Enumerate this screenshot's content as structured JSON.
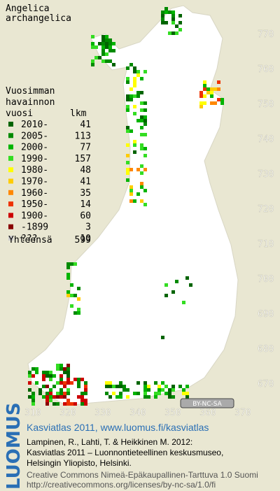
{
  "map": {
    "title_lines": [
      "Angelica",
      "archangelica"
    ],
    "legend": {
      "title_lines": [
        "Vuosimman",
        "havainnon",
        "vuosi"
      ],
      "count_header": "lkm",
      "items": [
        {
          "label": "2010-",
          "count": 41,
          "color": "#006400"
        },
        {
          "label": "2005-",
          "count": 113,
          "color": "#008a00"
        },
        {
          "label": "2000-",
          "count": 77,
          "color": "#00b400"
        },
        {
          "label": "1990-",
          "count": 157,
          "color": "#33dd22"
        },
        {
          "label": "1980-",
          "count": 48,
          "color": "#ffff00"
        },
        {
          "label": "1970-",
          "count": 41,
          "color": "#ffcc00"
        },
        {
          "label": "1960-",
          "count": 35,
          "color": "#ff8800"
        },
        {
          "label": "1950-",
          "count": 14,
          "color": "#ee3300"
        },
        {
          "label": "1900-",
          "count": 60,
          "color": "#cc0000"
        },
        {
          "label": "-1899",
          "count": 3,
          "color": "#880000"
        },
        {
          "label": "???",
          "count": 10,
          "color": "#cccccc"
        }
      ],
      "total_label": "Yhteensä",
      "total": 599
    },
    "y_grid_labels": [
      770,
      760,
      750,
      740,
      730,
      720,
      710,
      700,
      690,
      680,
      670
    ],
    "x_grid_labels": [
      310,
      320,
      330,
      340,
      350,
      360,
      370
    ],
    "license_badge": "BY-NC-SA"
  },
  "footer": {
    "logo": "LUOMUS",
    "headline": "Kasviatlas 2011, www.luomus.fi/kasviatlas",
    "citation": [
      "Lampinen, R., Lahti, T. & Heikkinen M. 2012:",
      "Kasviatlas 2011 – Luonnontieteellinen keskusmuseo,",
      "Helsingin Yliopisto, Helsinki."
    ],
    "license": [
      "Creative Commons Nimeä-Epäkaupallinen-Tarttuva 1.0 Suomi",
      "http://creativecommons.org/licenses/by-nc-sa/1.0/fi"
    ]
  }
}
